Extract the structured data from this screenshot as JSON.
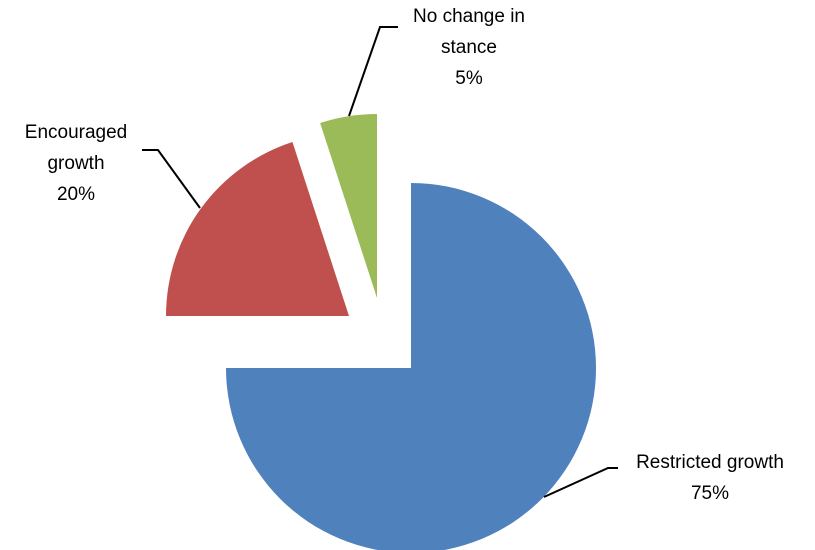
{
  "chart_data": {
    "type": "pie",
    "title": "",
    "start_angle_deg": 0,
    "direction": "clockwise",
    "exploded": true,
    "slices": [
      {
        "label_lines": [
          "Restricted growth"
        ],
        "value": 75,
        "value_label": "75%",
        "color": "#4F81BD"
      },
      {
        "label_lines": [
          "Encouraged",
          "growth"
        ],
        "value": 20,
        "value_label": "20%",
        "color": "#C0504D"
      },
      {
        "label_lines": [
          "No change in",
          "stance"
        ],
        "value": 5,
        "value_label": "5%",
        "color": "#9BBB59"
      }
    ]
  }
}
